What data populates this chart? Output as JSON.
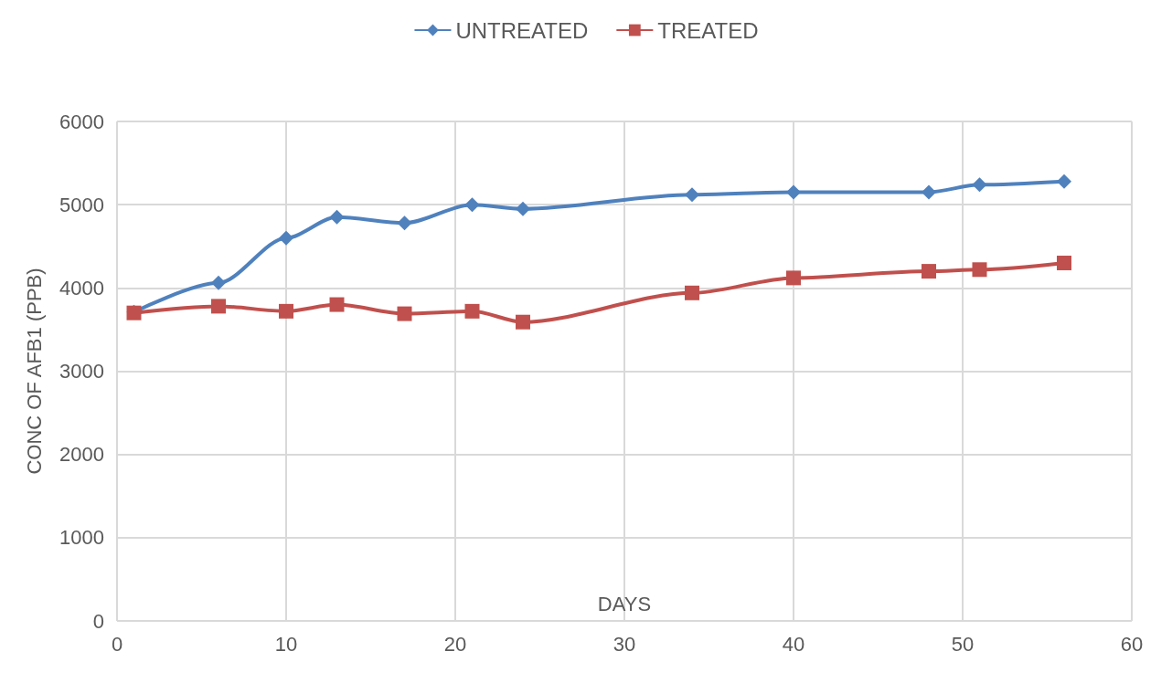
{
  "chart_data": {
    "type": "line",
    "xlabel": "DAYS",
    "ylabel": "CONC OF AFB1 (PPB)",
    "x": [
      1,
      6,
      10,
      13,
      17,
      21,
      24,
      34,
      40,
      48,
      51,
      56
    ],
    "series": [
      {
        "name": "UNTREATED",
        "color": "#4f81bd",
        "marker": "diamond",
        "values": [
          3710,
          4060,
          4600,
          4850,
          4780,
          5000,
          4950,
          5120,
          5150,
          5150,
          5240,
          5280
        ]
      },
      {
        "name": "TREATED",
        "color": "#c0504d",
        "marker": "square",
        "values": [
          3700,
          3780,
          3720,
          3800,
          3690,
          3720,
          3590,
          3940,
          4120,
          4200,
          4220,
          4300
        ]
      }
    ],
    "xlim": [
      0,
      60
    ],
    "xticks": [
      0,
      10,
      20,
      30,
      40,
      50,
      60
    ],
    "ylim": [
      0,
      6000
    ],
    "yticks": [
      0,
      1000,
      2000,
      3000,
      4000,
      5000,
      6000
    ],
    "grid": true,
    "legend": "top",
    "line_style": "solid"
  }
}
